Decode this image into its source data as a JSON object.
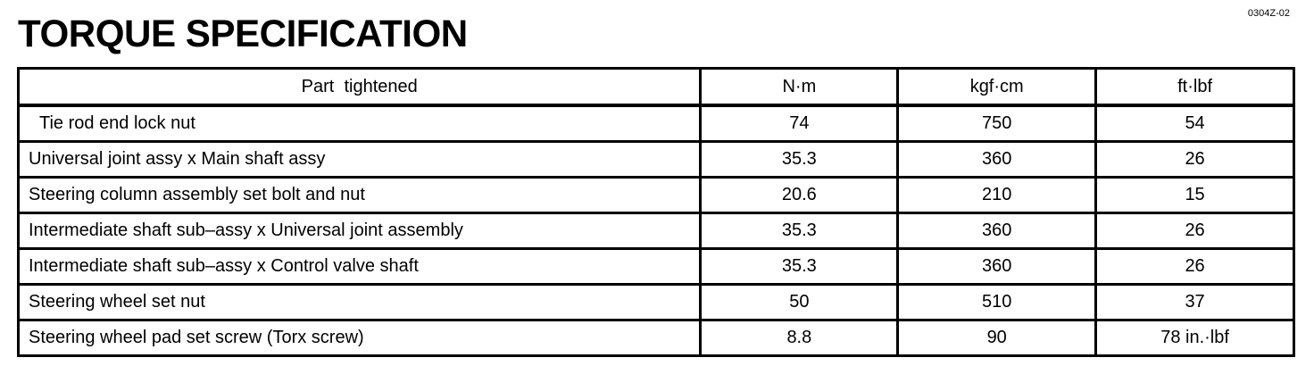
{
  "document_code": "0304Z-02",
  "title": "TORQUE SPECIFICATION",
  "table": {
    "headers": [
      "Part  tightened",
      "N·m",
      "kgf·cm",
      "ft·lbf"
    ],
    "rows": [
      [
        "Tie rod end lock nut",
        "74",
        "750",
        "54"
      ],
      [
        "Universal joint assy x Main shaft assy",
        "35.3",
        "360",
        "26"
      ],
      [
        "Steering column assembly set bolt and nut",
        "20.6",
        "210",
        "15"
      ],
      [
        "Intermediate shaft sub–assy x Universal joint assembly",
        "35.3",
        "360",
        "26"
      ],
      [
        "Intermediate shaft sub–assy x Control valve shaft",
        "35.3",
        "360",
        "26"
      ],
      [
        "Steering wheel set nut",
        "50",
        "510",
        "37"
      ],
      [
        "Steering wheel pad set screw (Torx screw)",
        "8.8",
        "90",
        "78 in.·lbf"
      ]
    ]
  }
}
